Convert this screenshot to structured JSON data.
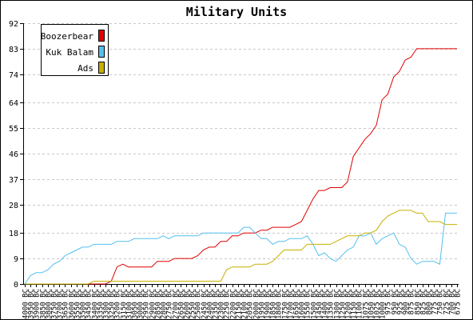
{
  "chart_data": {
    "type": "line",
    "title": "Military Units",
    "xlabel": "",
    "ylabel": "",
    "ylim": [
      0,
      92
    ],
    "yticks": [
      0,
      9,
      18,
      28,
      37,
      46,
      55,
      64,
      74,
      83,
      92
    ],
    "grid": "horizontal dashed",
    "legend_position": "top-left",
    "x": [
      "4000 BC",
      "3950 BC",
      "3900 BC",
      "3850 BC",
      "3800 BC",
      "3750 BC",
      "3700 BC",
      "3650 BC",
      "3600 BC",
      "3550 BC",
      "3500 BC",
      "3450 BC",
      "3400 BC",
      "3350 BC",
      "3300 BC",
      "3250 BC",
      "3200 BC",
      "3150 BC",
      "3100 BC",
      "3050 BC",
      "3000 BC",
      "2950 BC",
      "2900 BC",
      "2850 BC",
      "2800 BC",
      "2750 BC",
      "2700 BC",
      "2650 BC",
      "2600 BC",
      "2550 BC",
      "2500 BC",
      "2450 BC",
      "2400 BC",
      "2350 BC",
      "2300 BC",
      "2250 BC",
      "2200 BC",
      "2150 BC",
      "2100 BC",
      "2050 BC",
      "2000 BC",
      "1950 BC",
      "1900 BC",
      "1850 BC",
      "1800 BC",
      "1750 BC",
      "1700 BC",
      "1650 BC",
      "1600 BC",
      "1550 BC",
      "1500 BC",
      "1450 BC",
      "1400 BC",
      "1350 BC",
      "1300 BC",
      "1250 BC",
      "1200 BC",
      "1150 BC",
      "1100 BC",
      "1075 BC",
      "1050 BC",
      "1025 BC",
      "1000 BC",
      "975 BC",
      "950 BC",
      "925 BC",
      "900 BC",
      "875 BC",
      "850 BC",
      "825 BC",
      "800 BC",
      "775 BC",
      "750 BC",
      "725 BC",
      "700 BC",
      "675 BC"
    ],
    "series": [
      {
        "name": "Boozerbear",
        "color": "#e00000",
        "values": [
          0,
          0,
          0,
          0,
          0,
          0,
          0,
          0,
          0,
          0,
          0,
          0,
          0,
          0,
          0,
          1,
          6,
          7,
          6,
          6,
          6,
          6,
          6,
          8,
          8,
          8,
          9,
          9,
          9,
          9,
          10,
          12,
          13,
          13,
          15,
          15,
          17,
          17,
          18,
          18,
          18,
          19,
          19,
          20,
          20,
          20,
          20,
          21,
          22,
          26,
          30,
          33,
          33,
          34,
          34,
          34,
          36,
          45,
          48,
          51,
          53,
          56,
          65,
          67,
          73,
          75,
          79,
          80,
          83,
          83,
          83,
          83,
          83,
          83,
          83,
          83
        ]
      },
      {
        "name": "Kuk Balam",
        "color": "#55c0f0",
        "values": [
          0,
          3,
          4,
          4,
          5,
          7,
          8,
          10,
          11,
          12,
          13,
          13,
          14,
          14,
          14,
          14,
          15,
          15,
          15,
          16,
          16,
          16,
          16,
          16,
          17,
          16,
          17,
          17,
          17,
          17,
          17,
          18,
          18,
          18,
          18,
          18,
          18,
          18,
          20,
          20,
          18,
          16,
          16,
          14,
          15,
          15,
          16,
          16,
          16,
          17,
          14,
          10,
          11,
          9,
          8,
          10,
          12,
          13,
          17,
          17,
          18,
          14,
          16,
          17,
          18,
          14,
          13,
          9,
          7,
          8,
          8,
          8,
          7,
          25,
          25,
          25
        ]
      },
      {
        "name": "Ads",
        "color": "#c8b000",
        "values": [
          0,
          0,
          0,
          0,
          0,
          0,
          0,
          0,
          0,
          0,
          0,
          0,
          1,
          1,
          1,
          1,
          1,
          1,
          1,
          1,
          1,
          1,
          1,
          1,
          1,
          1,
          1,
          1,
          1,
          1,
          1,
          1,
          1,
          1,
          1,
          5,
          6,
          6,
          6,
          6,
          7,
          7,
          7,
          8,
          10,
          12,
          12,
          12,
          12,
          14,
          14,
          14,
          14,
          14,
          15,
          16,
          17,
          17,
          17,
          18,
          18,
          19,
          22,
          24,
          25,
          26,
          26,
          26,
          25,
          25,
          22,
          22,
          22,
          21,
          21,
          21
        ]
      }
    ]
  }
}
